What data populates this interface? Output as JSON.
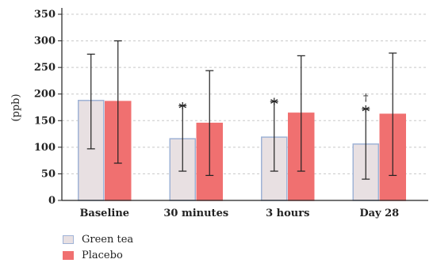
{
  "chart_data": {
    "type": "bar",
    "categories": [
      "Baseline",
      "30 minutes",
      "3 hours",
      "Day 28"
    ],
    "series": [
      {
        "name": "Green tea",
        "values": [
          188,
          116,
          119,
          106
        ],
        "error_upper": [
          275,
          178,
          186,
          172
        ],
        "error_lower": [
          97,
          55,
          55,
          40
        ],
        "fill": "#e8e0e2",
        "stroke": "#9fb3d6"
      },
      {
        "name": "Placebo",
        "values": [
          186,
          145,
          164,
          162
        ],
        "error_upper": [
          300,
          244,
          272,
          277
        ],
        "error_lower": [
          70,
          47,
          55,
          47
        ],
        "fill": "#f07070",
        "stroke": "#f07070"
      }
    ],
    "markers": [
      {
        "category": "30 minutes",
        "series": "Green tea",
        "symbols": [
          "*"
        ]
      },
      {
        "category": "3 hours",
        "series": "Green tea",
        "symbols": [
          "*"
        ]
      },
      {
        "category": "Day 28",
        "series": "Green tea",
        "symbols": [
          "†",
          "*"
        ]
      }
    ],
    "ylabel": "(ppb)",
    "ylim": [
      0,
      350
    ],
    "yticks": [
      0,
      50,
      100,
      150,
      200,
      250,
      300,
      350
    ],
    "grid": "horizontal dashed",
    "legend_position": "bottom-left"
  }
}
